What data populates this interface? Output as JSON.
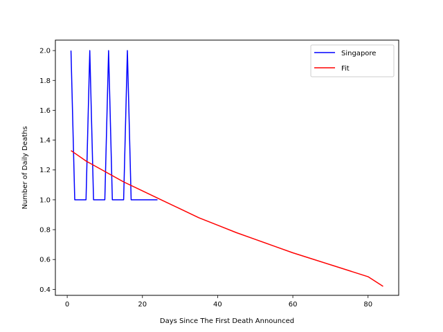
{
  "chart_data": {
    "type": "line",
    "xlabel": "Days Since The First Death Announced",
    "ylabel": "Number of Daily Deaths",
    "xlim": [
      -3.15,
      88.15
    ],
    "ylim": [
      0.36,
      2.07
    ],
    "xticks": [
      0,
      20,
      40,
      60,
      80
    ],
    "xtick_labels": [
      "0",
      "20",
      "40",
      "60",
      "80"
    ],
    "yticks": [
      0.4,
      0.6,
      0.8,
      1.0,
      1.2,
      1.4,
      1.6,
      1.8,
      2.0
    ],
    "ytick_labels": [
      "0.4",
      "0.6",
      "0.8",
      "1.0",
      "1.2",
      "1.4",
      "1.6",
      "1.8",
      "2.0"
    ],
    "grid": false,
    "legend_position": "top-right",
    "series": [
      {
        "name": "Singapore",
        "color": "#0000ff",
        "x": [
          1,
          2,
          3,
          4,
          5,
          6,
          7,
          8,
          9,
          10,
          11,
          12,
          13,
          14,
          15,
          16,
          17,
          18,
          19,
          20,
          21,
          22,
          23,
          24
        ],
        "y": [
          2,
          1,
          1,
          1,
          1,
          2,
          1,
          1,
          1,
          1,
          2,
          1,
          1,
          1,
          1,
          2,
          1,
          1,
          1,
          1,
          1,
          1,
          1,
          1
        ]
      },
      {
        "name": "Fit",
        "color": "#ff0000",
        "x": [
          1,
          5,
          10,
          15,
          20,
          25,
          30,
          35,
          40,
          45,
          50,
          55,
          60,
          65,
          70,
          75,
          80,
          84
        ],
        "y": [
          1.33,
          1.26,
          1.19,
          1.12,
          1.06,
          1.0,
          0.94,
          0.88,
          0.83,
          0.78,
          0.735,
          0.69,
          0.645,
          0.605,
          0.565,
          0.525,
          0.485,
          0.42
        ]
      }
    ]
  }
}
